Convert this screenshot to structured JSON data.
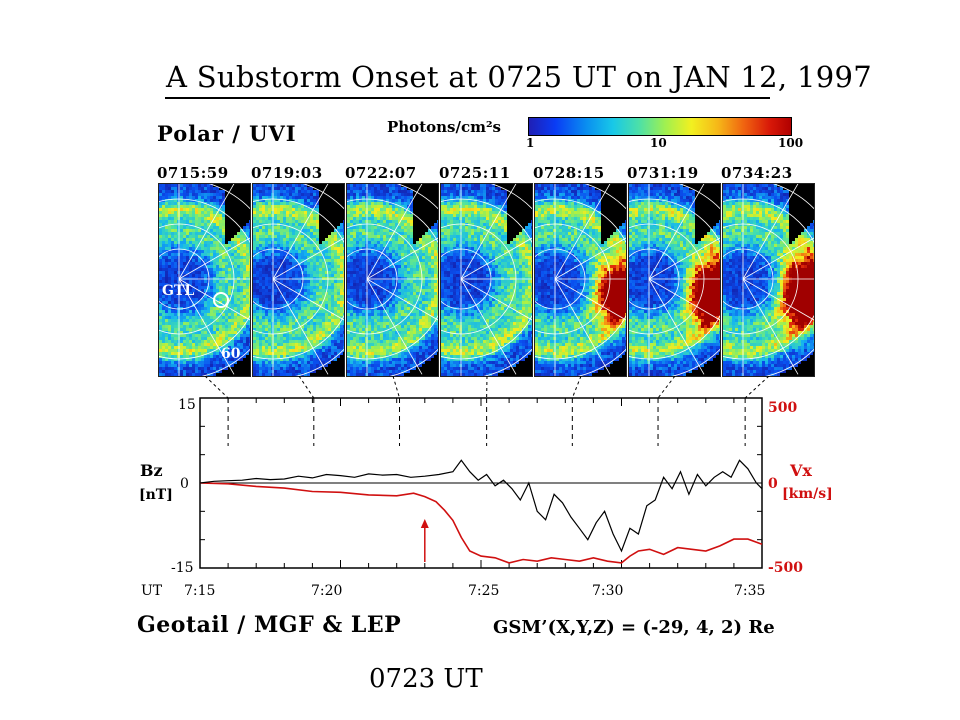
{
  "title": "A Substorm Onset at 0725 UT on JAN 12, 1997",
  "polar_label": "Polar / UVI",
  "colorbar": {
    "units": "Photons/cm²s",
    "ticks": [
      "1",
      "10",
      "100"
    ]
  },
  "frames": {
    "times": [
      "0715:59",
      "0719:03",
      "0722:07",
      "0725:11",
      "0728:15",
      "0731:19",
      "0734:23"
    ],
    "gtl_label": "GTL",
    "lat_label": "60"
  },
  "plot": {
    "bz_label": "Bz",
    "bz_unit": "[nT]",
    "vx_label": "Vx",
    "vx_unit": "[km/s]",
    "ut_label": "UT",
    "left_ticks": [
      "15",
      "0",
      "-15"
    ],
    "right_ticks": [
      "500",
      "0",
      "-500"
    ],
    "x_ticks": [
      "7:15",
      "7:20",
      "7:25",
      "7:30",
      "7:35"
    ]
  },
  "geotail_label": "Geotail / MGF & LEP",
  "gsm_label": "GSM’(X,Y,Z) = (-29, 4, 2) Re",
  "onset_label": "0723 UT",
  "colors": {
    "vx": "#d01010",
    "bz": "#000000"
  },
  "chart_data": {
    "type": "line",
    "x_unit": "UT minutes (7:15–7:35)",
    "xlim": [
      0,
      20
    ],
    "ylim_left": [
      -15,
      15
    ],
    "ylim_right": [
      -500,
      500
    ],
    "frame_time_markers": [
      1.0,
      4.05,
      7.1,
      10.2,
      13.25,
      16.3,
      19.4
    ],
    "onset_arrow_x": 8.0,
    "series": [
      {
        "name": "Bz",
        "axis": "left",
        "x": [
          0,
          0.5,
          1,
          1.5,
          2,
          2.5,
          3,
          3.5,
          4,
          4.5,
          5,
          5.5,
          6,
          6.5,
          7,
          7.5,
          8,
          8.5,
          9,
          9.3,
          9.6,
          9.9,
          10.2,
          10.5,
          10.8,
          11.1,
          11.4,
          11.7,
          12,
          12.3,
          12.6,
          12.9,
          13.2,
          13.5,
          13.8,
          14.1,
          14.4,
          14.7,
          15,
          15.3,
          15.6,
          15.9,
          16.2,
          16.5,
          16.8,
          17.1,
          17.4,
          17.7,
          18,
          18.3,
          18.6,
          18.9,
          19.2,
          19.5,
          19.8,
          20
        ],
        "values": [
          0,
          0.3,
          0.4,
          0.5,
          0.8,
          0.6,
          0.7,
          1.2,
          0.9,
          1.5,
          1.3,
          1.0,
          1.6,
          1.4,
          1.5,
          1.0,
          1.2,
          1.5,
          2.0,
          4.0,
          2.0,
          0.5,
          1.5,
          -0.5,
          0.5,
          -1.0,
          -3.0,
          0.0,
          -5.0,
          -6.5,
          -2.0,
          -3.5,
          -6.0,
          -8.0,
          -10.0,
          -7.0,
          -5.0,
          -9.0,
          -12.0,
          -8.0,
          -9.0,
          -4.0,
          -3.0,
          1.0,
          -1.0,
          2.0,
          -2.0,
          1.5,
          -0.5,
          1.0,
          2.0,
          1.0,
          4.0,
          2.5,
          0.0,
          -1.0
        ]
      },
      {
        "name": "Vx",
        "axis": "right",
        "x": [
          0,
          1,
          2,
          3,
          4,
          5,
          6,
          7,
          7.6,
          8.0,
          8.4,
          8.7,
          9.0,
          9.3,
          9.6,
          10,
          10.5,
          11,
          11.5,
          12,
          12.5,
          13,
          13.5,
          14,
          14.5,
          15,
          15.3,
          15.6,
          16,
          16.5,
          17,
          17.5,
          18,
          18.5,
          19,
          19.5,
          20
        ],
        "values": [
          0,
          -5,
          -20,
          -30,
          -50,
          -55,
          -70,
          -75,
          -60,
          -80,
          -110,
          -160,
          -220,
          -320,
          -400,
          -430,
          -440,
          -470,
          -450,
          -460,
          -440,
          -450,
          -460,
          -440,
          -460,
          -470,
          -430,
          -400,
          -390,
          -420,
          -380,
          -390,
          -400,
          -370,
          -330,
          -330,
          -360
        ]
      }
    ]
  }
}
